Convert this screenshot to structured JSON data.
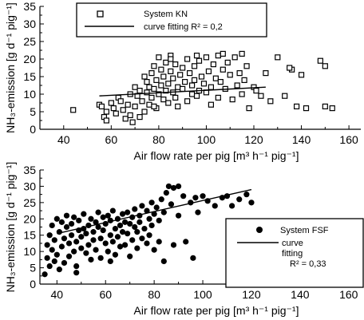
{
  "chart_data": [
    {
      "type": "scatter",
      "title": "",
      "xlabel": "Air flow rate per pig [m³ h⁻¹ pig⁻¹]",
      "ylabel": "NH₃-emission [g d⁻¹ pig⁻¹]",
      "xlim": [
        30,
        165
      ],
      "ylim": [
        0,
        35
      ],
      "xticks": [
        40,
        60,
        80,
        100,
        120,
        140,
        160
      ],
      "yticks": [
        0,
        5,
        10,
        15,
        20,
        25,
        30,
        35
      ],
      "legend_position": "top-left",
      "legend": [
        {
          "label": "System KN",
          "marker": "open-square"
        },
        {
          "label": "curve fitting R² = 0,2",
          "marker": "line"
        }
      ],
      "marker": "open-square",
      "fit_line": {
        "x": [
          55,
          125
        ],
        "y": [
          9.5,
          12.0
        ]
      },
      "series": [
        {
          "name": "System KN",
          "points": [
            [
              44,
              5.5
            ],
            [
              55,
              7.0
            ],
            [
              56,
              6.5
            ],
            [
              57,
              3.5
            ],
            [
              58,
              5.0
            ],
            [
              58,
              2.5
            ],
            [
              60,
              7.5
            ],
            [
              61,
              6.0
            ],
            [
              62,
              4.5
            ],
            [
              63,
              9.0
            ],
            [
              64,
              8.0
            ],
            [
              65,
              5.5
            ],
            [
              66,
              3.0
            ],
            [
              67,
              7.0
            ],
            [
              68,
              10.0
            ],
            [
              68,
              4.0
            ],
            [
              70,
              12.0
            ],
            [
              70,
              6.5
            ],
            [
              71,
              9.5
            ],
            [
              72,
              11.0
            ],
            [
              72,
              3.5
            ],
            [
              73,
              8.0
            ],
            [
              74,
              15.0
            ],
            [
              74,
              5.0
            ],
            [
              75,
              10.5
            ],
            [
              75,
              13.5
            ],
            [
              76,
              12.0
            ],
            [
              76,
              7.0
            ],
            [
              77,
              16.0
            ],
            [
              77,
              9.0
            ],
            [
              78,
              18.0
            ],
            [
              78,
              11.5
            ],
            [
              79,
              14.0
            ],
            [
              79,
              6.0
            ],
            [
              80,
              20.5
            ],
            [
              80,
              10.0
            ],
            [
              81,
              17.0
            ],
            [
              81,
              12.5
            ],
            [
              82,
              8.5
            ],
            [
              82,
              15.0
            ],
            [
              83,
              19.0
            ],
            [
              83,
              11.0
            ],
            [
              84,
              13.0
            ],
            [
              84,
              7.5
            ],
            [
              85,
              16.5
            ],
            [
              85,
              21.0
            ],
            [
              86,
              10.5
            ],
            [
              86,
              14.5
            ],
            [
              87,
              9.0
            ],
            [
              87,
              18.5
            ],
            [
              88,
              12.0
            ],
            [
              88,
              6.5
            ],
            [
              89,
              15.5
            ],
            [
              90,
              17.5
            ],
            [
              90,
              11.5
            ],
            [
              91,
              13.5
            ],
            [
              92,
              20.0
            ],
            [
              92,
              8.0
            ],
            [
              93,
              16.0
            ],
            [
              94,
              12.5
            ],
            [
              94,
              10.0
            ],
            [
              95,
              18.0
            ],
            [
              95,
              14.0
            ],
            [
              96,
              9.5
            ],
            [
              97,
              19.5
            ],
            [
              97,
              11.0
            ],
            [
              98,
              15.0
            ],
            [
              99,
              13.0
            ],
            [
              100,
              20.5
            ],
            [
              100,
              10.5
            ],
            [
              101,
              16.5
            ],
            [
              102,
              12.0
            ],
            [
              102,
              7.0
            ],
            [
              103,
              18.5
            ],
            [
              104,
              14.5
            ],
            [
              105,
              21.0
            ],
            [
              105,
              9.0
            ],
            [
              106,
              13.5
            ],
            [
              107,
              17.0
            ],
            [
              108,
              11.5
            ],
            [
              109,
              19.0
            ],
            [
              110,
              15.5
            ],
            [
              111,
              8.5
            ],
            [
              112,
              20.5
            ],
            [
              113,
              12.5
            ],
            [
              114,
              16.0
            ],
            [
              115,
              10.0
            ],
            [
              116,
              14.0
            ],
            [
              117,
              18.0
            ],
            [
              118,
              6.0
            ],
            [
              120,
              12.0
            ],
            [
              121,
              11.0
            ],
            [
              123,
              9.5
            ],
            [
              125,
              16.0
            ],
            [
              127,
              8.0
            ],
            [
              130,
              20.5
            ],
            [
              133,
              9.5
            ],
            [
              136,
              17.0
            ],
            [
              138,
              6.5
            ],
            [
              140,
              15.5
            ],
            [
              142,
              6.0
            ],
            [
              148,
              19.5
            ],
            [
              150,
              18.0
            ],
            [
              150,
              6.5
            ],
            [
              153,
              6.0
            ],
            [
              135,
              17.5
            ],
            [
              115,
              21.5
            ],
            [
              107,
              21.5
            ],
            [
              96,
              21.0
            ],
            [
              85,
              20.0
            ],
            [
              78,
              6.5
            ],
            [
              69,
              2.0
            ]
          ]
        }
      ]
    },
    {
      "type": "scatter",
      "title": "",
      "xlabel": "Air flow rate per pig [m³ h⁻¹ pig⁻¹]",
      "ylabel": "NH₃-emission [g d⁻¹ pig⁻¹]",
      "xlim": [
        33,
        165
      ],
      "ylim": [
        0,
        35
      ],
      "xticks": [
        40,
        60,
        80,
        100,
        120,
        140,
        160
      ],
      "yticks": [
        0,
        5,
        10,
        15,
        20,
        25,
        30,
        35
      ],
      "legend_position": "bottom-right",
      "legend": [
        {
          "label": "System FSF",
          "marker": "filled-circle"
        },
        {
          "label": "curve fitting R² = 0,33",
          "marker": "line"
        }
      ],
      "marker": "filled-circle",
      "fit_line": {
        "x": [
          40,
          120
        ],
        "y": [
          15.5,
          29.0
        ]
      },
      "series": [
        {
          "name": "System FSF",
          "points": [
            [
              35,
              3.0
            ],
            [
              36,
              8.0
            ],
            [
              36,
              12.0
            ],
            [
              37,
              5.5
            ],
            [
              37,
              15.0
            ],
            [
              38,
              10.5
            ],
            [
              38,
              18.0
            ],
            [
              39,
              7.0
            ],
            [
              39,
              13.5
            ],
            [
              40,
              20.0
            ],
            [
              40,
              9.0
            ],
            [
              41,
              16.0
            ],
            [
              41,
              4.5
            ],
            [
              42,
              11.5
            ],
            [
              42,
              19.0
            ],
            [
              43,
              14.0
            ],
            [
              43,
              6.5
            ],
            [
              44,
              17.5
            ],
            [
              44,
              21.0
            ],
            [
              45,
              12.5
            ],
            [
              45,
              8.5
            ],
            [
              46,
              18.5
            ],
            [
              46,
              15.0
            ],
            [
              47,
              10.0
            ],
            [
              47,
              20.5
            ],
            [
              48,
              13.0
            ],
            [
              48,
              5.5
            ],
            [
              49,
              16.5
            ],
            [
              49,
              19.5
            ],
            [
              50,
              11.0
            ],
            [
              50,
              14.5
            ],
            [
              51,
              17.0
            ],
            [
              51,
              21.5
            ],
            [
              52,
              9.5
            ],
            [
              52,
              15.5
            ],
            [
              53,
              18.0
            ],
            [
              53,
              12.0
            ],
            [
              54,
              20.0
            ],
            [
              54,
              7.5
            ],
            [
              55,
              16.0
            ],
            [
              55,
              13.5
            ],
            [
              56,
              19.0
            ],
            [
              56,
              10.5
            ],
            [
              57,
              17.5
            ],
            [
              57,
              22.0
            ],
            [
              58,
              14.0
            ],
            [
              58,
              8.0
            ],
            [
              59,
              20.5
            ],
            [
              59,
              16.5
            ],
            [
              60,
              12.5
            ],
            [
              60,
              18.5
            ],
            [
              61,
              21.0
            ],
            [
              61,
              10.0
            ],
            [
              62,
              15.0
            ],
            [
              62,
              19.5
            ],
            [
              63,
              13.0
            ],
            [
              63,
              22.5
            ],
            [
              64,
              17.0
            ],
            [
              64,
              9.0
            ],
            [
              65,
              20.0
            ],
            [
              65,
              14.5
            ],
            [
              66,
              18.0
            ],
            [
              66,
              11.5
            ],
            [
              67,
              21.5
            ],
            [
              67,
              16.0
            ],
            [
              68,
              19.0
            ],
            [
              68,
              12.0
            ],
            [
              69,
              22.0
            ],
            [
              69,
              15.5
            ],
            [
              70,
              18.5
            ],
            [
              70,
              8.5
            ],
            [
              71,
              20.5
            ],
            [
              71,
              13.5
            ],
            [
              72,
              17.5
            ],
            [
              72,
              23.0
            ],
            [
              73,
              16.0
            ],
            [
              73,
              11.0
            ],
            [
              74,
              21.0
            ],
            [
              74,
              19.0
            ],
            [
              75,
              14.0
            ],
            [
              75,
              24.0
            ],
            [
              76,
              17.0
            ],
            [
              77,
              22.5
            ],
            [
              77,
              12.5
            ],
            [
              78,
              20.0
            ],
            [
              78,
              15.0
            ],
            [
              79,
              25.0
            ],
            [
              79,
              18.0
            ],
            [
              80,
              21.5
            ],
            [
              80,
              10.5
            ],
            [
              81,
              23.5
            ],
            [
              82,
              19.5
            ],
            [
              82,
              13.0
            ],
            [
              83,
              26.0
            ],
            [
              84,
              22.0
            ],
            [
              84,
              7.0
            ],
            [
              85,
              28.0
            ],
            [
              86,
              30.0
            ],
            [
              87,
              24.5
            ],
            [
              88,
              29.5
            ],
            [
              88,
              12.0
            ],
            [
              90,
              30.0
            ],
            [
              90,
              21.0
            ],
            [
              92,
              27.0
            ],
            [
              93,
              13.0
            ],
            [
              95,
              25.0
            ],
            [
              96,
              8.0
            ],
            [
              97,
              26.5
            ],
            [
              98,
              22.0
            ],
            [
              100,
              27.0
            ],
            [
              102,
              25.5
            ],
            [
              105,
              24.0
            ],
            [
              108,
              26.5
            ],
            [
              110,
              27.0
            ],
            [
              112,
              24.0
            ],
            [
              115,
              26.0
            ],
            [
              118,
              27.5
            ],
            [
              120,
              25.0
            ],
            [
              62,
              7.0
            ],
            [
              48,
              3.5
            ]
          ]
        }
      ]
    }
  ]
}
